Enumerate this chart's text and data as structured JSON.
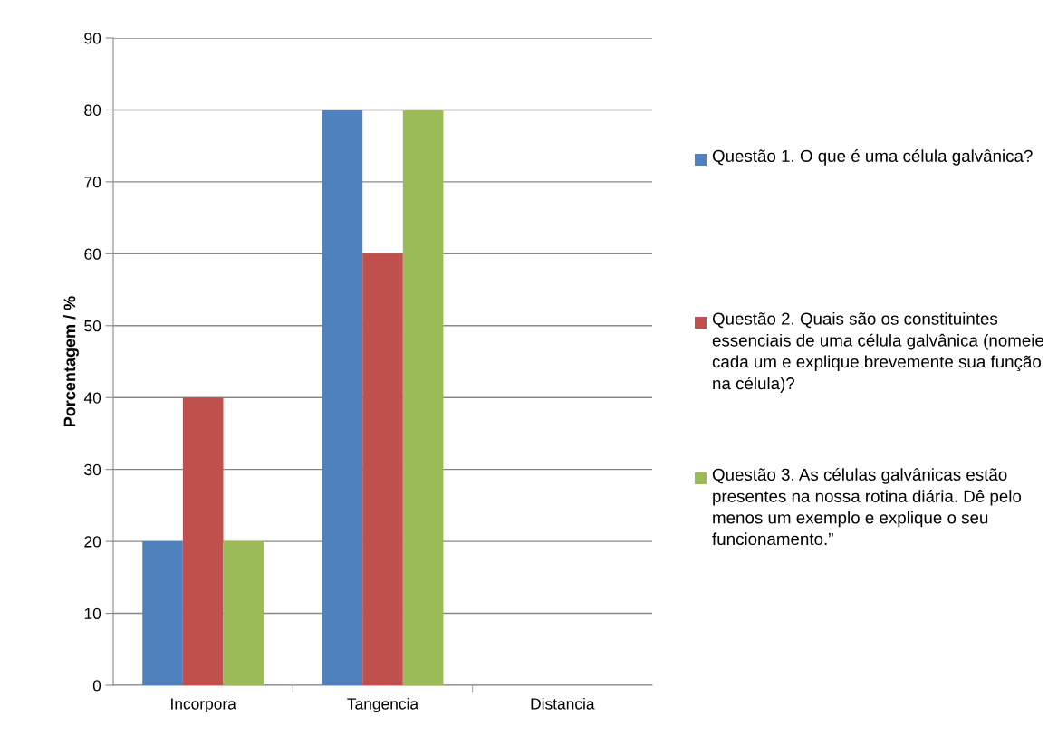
{
  "chart_data": {
    "type": "bar",
    "ylabel": "Porcentagem / %",
    "categories": [
      "Incorpora",
      "Tangencia",
      "Distancia"
    ],
    "series": [
      {
        "name": "Questão 1. O que é uma célula galvânica?",
        "color": "#4f81bd",
        "values": [
          20,
          80,
          0
        ]
      },
      {
        "name": "Questão 2. Quais são os constituintes essenciais de uma célula galvânica (nomeie cada um e explique brevemente sua função na célula)?",
        "color": "#c0504d",
        "values": [
          40,
          60,
          0
        ]
      },
      {
        "name": "Questão 3. As células galvânicas estão presentes na nossa rotina diária. Dê pelo menos um exemplo e explique o seu funcionamento.”",
        "color": "#9bbb59",
        "values": [
          20,
          80,
          0
        ]
      }
    ],
    "ylim": [
      0,
      90
    ],
    "yticks": [
      0,
      10,
      20,
      30,
      40,
      50,
      60,
      70,
      80,
      90
    ],
    "grid": "y",
    "legend": "right"
  }
}
